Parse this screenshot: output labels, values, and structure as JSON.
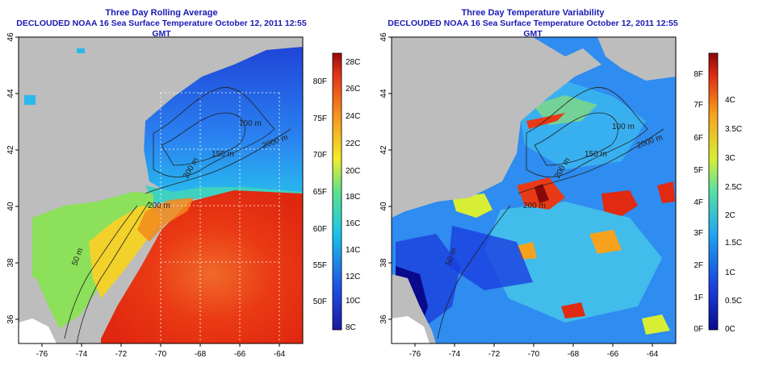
{
  "panels": [
    {
      "id": "left",
      "title": "Three Day Rolling Average",
      "subtitle": "DECLOUDED NOAA 16 Sea Surface Temperature October 12, 2011 12:55 GMT",
      "x_ticks": [
        "-76",
        "-74",
        "-72",
        "-70",
        "-68",
        "-66",
        "-64"
      ],
      "y_ticks": [
        "46",
        "44",
        "42",
        "40",
        "38",
        "36"
      ],
      "contour_labels": [
        "100 m",
        "150 m",
        "200 m",
        "2000 m",
        "50 m",
        "200 m"
      ],
      "colorbar": {
        "celsius": [
          "28C",
          "26C",
          "24C",
          "22C",
          "20C",
          "18C",
          "16C",
          "14C",
          "12C",
          "10C",
          "8C"
        ],
        "fahrenheit": [
          "80F",
          "75F",
          "70F",
          "65F",
          "60F",
          "55F",
          "50F"
        ]
      }
    },
    {
      "id": "right",
      "title": "Three Day Temperature Variability",
      "subtitle": "DECLOUDED NOAA 16 Sea Surface Temperature October 12, 2011 12:55 GMT",
      "x_ticks": [
        "-76",
        "-74",
        "-72",
        "-70",
        "-68",
        "-66",
        "-64"
      ],
      "y_ticks": [
        "46",
        "44",
        "42",
        "40",
        "38",
        "36"
      ],
      "contour_labels": [
        "100 m",
        "150 m",
        "200 m",
        "2000 m",
        "50 m",
        "200 m"
      ],
      "colorbar": {
        "celsius": [
          "4C",
          "3.5C",
          "3C",
          "2.5C",
          "2C",
          "1.5C",
          "1C",
          "0.5C",
          "0C"
        ],
        "fahrenheit": [
          "8F",
          "7F",
          "6F",
          "5F",
          "4F",
          "3F",
          "2F",
          "1F",
          "0F"
        ]
      }
    }
  ],
  "colors": {
    "title": "#1a1ab4",
    "land": "#bdbdbd",
    "warm": "#e52a10",
    "cold": "#2a55e0",
    "variability_base": "#2f8cf0"
  }
}
